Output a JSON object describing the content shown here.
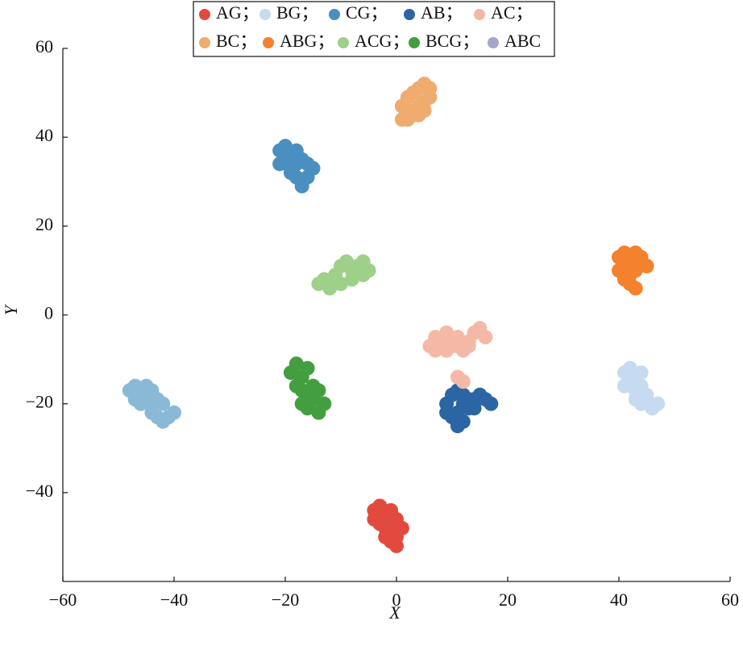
{
  "chart_data": {
    "type": "scatter",
    "x_label": "X",
    "y_label": "Y",
    "xlim": [
      -60,
      60
    ],
    "ylim": [
      -60,
      60
    ],
    "xticks": [
      {
        "value": -60,
        "label": "−60"
      },
      {
        "value": -40,
        "label": "−40"
      },
      {
        "value": -20,
        "label": "−20"
      },
      0,
      20,
      40,
      60
    ],
    "yticks": [
      {
        "value": -40,
        "label": "−40"
      },
      {
        "value": -20,
        "label": "−20"
      },
      0,
      20,
      40,
      60
    ],
    "series": [
      {
        "name": "AG；",
        "color": "#e34a3f",
        "x": [
          -4,
          -3,
          -2,
          -1,
          0,
          -3,
          -2,
          -1,
          0,
          1,
          -2,
          -1,
          0,
          -4,
          -1,
          0
        ],
        "y": [
          -44,
          -43,
          -45,
          -44,
          -46,
          -47,
          -48,
          -47,
          -49,
          -48,
          -50,
          -51,
          -52,
          -46,
          -49,
          -50
        ]
      },
      {
        "name": "BG；",
        "color": "#c6dbef",
        "x": [
          41,
          42,
          43,
          44,
          41,
          42,
          43,
          44,
          45,
          43,
          44,
          45,
          46,
          47,
          44
        ],
        "y": [
          -13,
          -12,
          -14,
          -13,
          -16,
          -15,
          -17,
          -16,
          -18,
          -19,
          -20,
          -19,
          -21,
          -20,
          -18
        ]
      },
      {
        "name": "CG；",
        "color": "#4a8fc0",
        "x": [
          -21,
          -20,
          -19,
          -18,
          -21,
          -20,
          -19,
          -18,
          -17,
          -16,
          -19,
          -18,
          -17,
          -16,
          -15,
          -17
        ],
        "y": [
          37,
          38,
          36,
          37,
          34,
          35,
          33,
          34,
          35,
          34,
          32,
          31,
          30,
          31,
          33,
          29
        ]
      },
      {
        "name": "AB；",
        "color": "#2c65a3",
        "x": [
          9,
          10,
          11,
          12,
          13,
          14,
          15,
          16,
          17,
          9,
          10,
          11,
          12,
          13,
          14,
          11,
          12
        ],
        "y": [
          -20,
          -18,
          -17,
          -18,
          -19,
          -19,
          -18,
          -19,
          -20,
          -22,
          -23,
          -22,
          -24,
          -21,
          -21,
          -25,
          -20
        ]
      },
      {
        "name": "AC；",
        "color": "#f4b9a6",
        "x": [
          6,
          7,
          8,
          9,
          10,
          11,
          12,
          13,
          14,
          15,
          16,
          7,
          9,
          11,
          13,
          11,
          12
        ],
        "y": [
          -7,
          -5,
          -6,
          -4,
          -7,
          -5,
          -8,
          -6,
          -4,
          -3,
          -5,
          -8,
          -8,
          -7,
          -7,
          -14,
          -15
        ]
      },
      {
        "name": "BC；",
        "color": "#f0ab6e",
        "x": [
          1,
          2,
          3,
          4,
          5,
          6,
          1,
          2,
          3,
          4,
          5,
          6,
          2,
          3,
          4,
          5
        ],
        "y": [
          47,
          49,
          50,
          51,
          52,
          51,
          44,
          45,
          46,
          47,
          48,
          49,
          44,
          45,
          45,
          46
        ]
      },
      {
        "name": "ABG；",
        "color": "#f3812e",
        "x": [
          40,
          41,
          42,
          43,
          44,
          45,
          40,
          41,
          42,
          43,
          44,
          45,
          41,
          42,
          43
        ],
        "y": [
          13,
          14,
          13,
          14,
          13,
          11,
          10,
          11,
          9,
          10,
          12,
          11,
          8,
          7,
          6
        ]
      },
      {
        "name": "ACG；",
        "color": "#9fd08a",
        "x": [
          -14,
          -13,
          -12,
          -11,
          -10,
          -9,
          -8,
          -7,
          -6,
          -5,
          -12,
          -10,
          -8,
          -6
        ],
        "y": [
          7,
          8,
          7,
          9,
          11,
          12,
          10,
          11,
          12,
          10,
          6,
          7,
          8,
          9
        ]
      },
      {
        "name": "BCG；",
        "color": "#439e3f",
        "x": [
          -19,
          -18,
          -17,
          -16,
          -18,
          -17,
          -16,
          -15,
          -14,
          -17,
          -16,
          -15,
          -14,
          -13
        ],
        "y": [
          -13,
          -11,
          -14,
          -12,
          -16,
          -17,
          -18,
          -16,
          -17,
          -20,
          -21,
          -19,
          -22,
          -20
        ]
      },
      {
        "name": "ABC",
        "color": "#a5a5cc",
        "x": [],
        "y": []
      },
      {
        "color": "#8ab9d5",
        "x": [
          -48,
          -47,
          -46,
          -45,
          -44,
          -47,
          -46,
          -45,
          -44,
          -43,
          -42,
          -44,
          -43,
          -42,
          -41,
          -40
        ],
        "y": [
          -17,
          -16,
          -17,
          -16,
          -17,
          -19,
          -20,
          -19,
          -20,
          -19,
          -20,
          -22,
          -23,
          -24,
          -23,
          -22
        ]
      }
    ]
  }
}
